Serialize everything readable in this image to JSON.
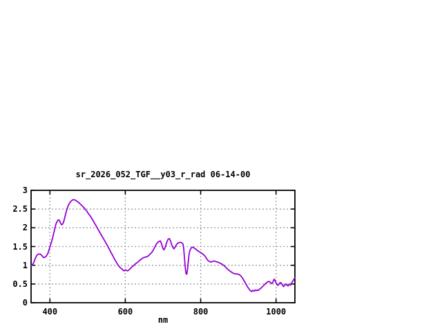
{
  "window": {
    "background": "#ffffff"
  },
  "chart_data": {
    "type": "line",
    "title": "sr_2026_052_TGF__y03_r_rad 06-14-00",
    "xlabel": "nm",
    "ylabel": "",
    "xlim": [
      350,
      1050
    ],
    "ylim": [
      0,
      3
    ],
    "xticks": [
      400,
      600,
      800,
      1000
    ],
    "yticks": [
      0,
      0.5,
      1,
      1.5,
      2,
      2.5,
      3
    ],
    "grid": true,
    "legend_position": "none",
    "style": {
      "line_color": "#9400d3",
      "frame_color": "#000000",
      "grid_color": "#9a9a9a",
      "background": "#ffffff"
    },
    "series": [
      {
        "name": "sr_2026_052_TGF__y03_r_rad 06-14-00",
        "color": "#9400d3",
        "points": [
          [
            350,
            1.0
          ],
          [
            353,
            1.01
          ],
          [
            356,
            1.05
          ],
          [
            359,
            1.12
          ],
          [
            362,
            1.2
          ],
          [
            365,
            1.26
          ],
          [
            368,
            1.29
          ],
          [
            371,
            1.3
          ],
          [
            374,
            1.3
          ],
          [
            377,
            1.28
          ],
          [
            380,
            1.24
          ],
          [
            383,
            1.21
          ],
          [
            386,
            1.21
          ],
          [
            389,
            1.23
          ],
          [
            392,
            1.27
          ],
          [
            395,
            1.33
          ],
          [
            398,
            1.42
          ],
          [
            401,
            1.52
          ],
          [
            404,
            1.62
          ],
          [
            407,
            1.72
          ],
          [
            410,
            1.85
          ],
          [
            413,
            1.98
          ],
          [
            416,
            2.1
          ],
          [
            419,
            2.17
          ],
          [
            422,
            2.21
          ],
          [
            425,
            2.2
          ],
          [
            428,
            2.13
          ],
          [
            431,
            2.08
          ],
          [
            434,
            2.1
          ],
          [
            437,
            2.18
          ],
          [
            440,
            2.3
          ],
          [
            443,
            2.42
          ],
          [
            446,
            2.52
          ],
          [
            449,
            2.6
          ],
          [
            452,
            2.66
          ],
          [
            455,
            2.7
          ],
          [
            458,
            2.73
          ],
          [
            461,
            2.75
          ],
          [
            464,
            2.75
          ],
          [
            467,
            2.74
          ],
          [
            470,
            2.72
          ],
          [
            474,
            2.69
          ],
          [
            478,
            2.66
          ],
          [
            482,
            2.62
          ],
          [
            486,
            2.58
          ],
          [
            490,
            2.54
          ],
          [
            494,
            2.49
          ],
          [
            498,
            2.44
          ],
          [
            502,
            2.38
          ],
          [
            506,
            2.33
          ],
          [
            510,
            2.27
          ],
          [
            514,
            2.2
          ],
          [
            518,
            2.13
          ],
          [
            522,
            2.06
          ],
          [
            526,
            1.99
          ],
          [
            530,
            1.92
          ],
          [
            534,
            1.85
          ],
          [
            538,
            1.78
          ],
          [
            542,
            1.71
          ],
          [
            546,
            1.64
          ],
          [
            550,
            1.57
          ],
          [
            554,
            1.5
          ],
          [
            558,
            1.42
          ],
          [
            562,
            1.34
          ],
          [
            566,
            1.27
          ],
          [
            570,
            1.19
          ],
          [
            574,
            1.12
          ],
          [
            578,
            1.05
          ],
          [
            582,
            0.99
          ],
          [
            586,
            0.94
          ],
          [
            590,
            0.91
          ],
          [
            594,
            0.87
          ],
          [
            597,
            0.85
          ],
          [
            600,
            0.88
          ],
          [
            603,
            0.86
          ],
          [
            606,
            0.85
          ],
          [
            609,
            0.87
          ],
          [
            612,
            0.9
          ],
          [
            615,
            0.93
          ],
          [
            618,
            0.96
          ],
          [
            622,
            0.99
          ],
          [
            626,
            1.03
          ],
          [
            630,
            1.06
          ],
          [
            634,
            1.09
          ],
          [
            638,
            1.13
          ],
          [
            642,
            1.16
          ],
          [
            646,
            1.19
          ],
          [
            650,
            1.21
          ],
          [
            654,
            1.22
          ],
          [
            658,
            1.23
          ],
          [
            662,
            1.26
          ],
          [
            666,
            1.3
          ],
          [
            670,
            1.34
          ],
          [
            674,
            1.4
          ],
          [
            678,
            1.48
          ],
          [
            682,
            1.56
          ],
          [
            686,
            1.61
          ],
          [
            690,
            1.64
          ],
          [
            693,
            1.65
          ],
          [
            696,
            1.58
          ],
          [
            699,
            1.47
          ],
          [
            702,
            1.41
          ],
          [
            705,
            1.45
          ],
          [
            708,
            1.55
          ],
          [
            711,
            1.64
          ],
          [
            714,
            1.7
          ],
          [
            717,
            1.71
          ],
          [
            720,
            1.65
          ],
          [
            723,
            1.55
          ],
          [
            726,
            1.48
          ],
          [
            729,
            1.44
          ],
          [
            732,
            1.48
          ],
          [
            735,
            1.54
          ],
          [
            738,
            1.58
          ],
          [
            741,
            1.6
          ],
          [
            744,
            1.61
          ],
          [
            747,
            1.61
          ],
          [
            750,
            1.6
          ],
          [
            753,
            1.57
          ],
          [
            755,
            1.45
          ],
          [
            757,
            1.2
          ],
          [
            759,
            0.95
          ],
          [
            761,
            0.78
          ],
          [
            763,
            0.76
          ],
          [
            765,
            0.88
          ],
          [
            767,
            1.1
          ],
          [
            769,
            1.28
          ],
          [
            771,
            1.38
          ],
          [
            774,
            1.45
          ],
          [
            777,
            1.48
          ],
          [
            780,
            1.48
          ],
          [
            783,
            1.46
          ],
          [
            786,
            1.44
          ],
          [
            789,
            1.41
          ],
          [
            792,
            1.39
          ],
          [
            795,
            1.37
          ],
          [
            798,
            1.35
          ],
          [
            801,
            1.33
          ],
          [
            804,
            1.31
          ],
          [
            807,
            1.29
          ],
          [
            810,
            1.26
          ],
          [
            813,
            1.22
          ],
          [
            816,
            1.17
          ],
          [
            819,
            1.13
          ],
          [
            822,
            1.11
          ],
          [
            825,
            1.09
          ],
          [
            828,
            1.09
          ],
          [
            831,
            1.1
          ],
          [
            834,
            1.11
          ],
          [
            837,
            1.11
          ],
          [
            840,
            1.1
          ],
          [
            843,
            1.09
          ],
          [
            846,
            1.08
          ],
          [
            849,
            1.07
          ],
          [
            852,
            1.05
          ],
          [
            855,
            1.04
          ],
          [
            858,
            1.02
          ],
          [
            861,
            1.0
          ],
          [
            864,
            0.97
          ],
          [
            867,
            0.94
          ],
          [
            870,
            0.91
          ],
          [
            873,
            0.88
          ],
          [
            876,
            0.86
          ],
          [
            880,
            0.83
          ],
          [
            884,
            0.8
          ],
          [
            888,
            0.78
          ],
          [
            892,
            0.77
          ],
          [
            896,
            0.77
          ],
          [
            900,
            0.76
          ],
          [
            904,
            0.74
          ],
          [
            908,
            0.7
          ],
          [
            912,
            0.64
          ],
          [
            916,
            0.57
          ],
          [
            920,
            0.5
          ],
          [
            924,
            0.43
          ],
          [
            928,
            0.37
          ],
          [
            932,
            0.32
          ],
          [
            935,
            0.3
          ],
          [
            938,
            0.33
          ],
          [
            941,
            0.31
          ],
          [
            944,
            0.34
          ],
          [
            947,
            0.32
          ],
          [
            950,
            0.34
          ],
          [
            953,
            0.33
          ],
          [
            956,
            0.36
          ],
          [
            959,
            0.38
          ],
          [
            962,
            0.41
          ],
          [
            965,
            0.44
          ],
          [
            968,
            0.47
          ],
          [
            971,
            0.5
          ],
          [
            974,
            0.53
          ],
          [
            977,
            0.55
          ],
          [
            980,
            0.57
          ],
          [
            983,
            0.56
          ],
          [
            986,
            0.53
          ],
          [
            989,
            0.51
          ],
          [
            992,
            0.56
          ],
          [
            995,
            0.63
          ],
          [
            997,
            0.6
          ],
          [
            999,
            0.55
          ],
          [
            1001,
            0.52
          ],
          [
            1003,
            0.48
          ],
          [
            1005,
            0.46
          ],
          [
            1008,
            0.5
          ],
          [
            1011,
            0.54
          ],
          [
            1014,
            0.52
          ],
          [
            1017,
            0.47
          ],
          [
            1020,
            0.43
          ],
          [
            1023,
            0.47
          ],
          [
            1026,
            0.5
          ],
          [
            1029,
            0.47
          ],
          [
            1032,
            0.45
          ],
          [
            1035,
            0.5
          ],
          [
            1038,
            0.47
          ],
          [
            1041,
            0.52
          ],
          [
            1044,
            0.57
          ],
          [
            1047,
            0.62
          ],
          [
            1050,
            0.67
          ]
        ]
      }
    ]
  }
}
